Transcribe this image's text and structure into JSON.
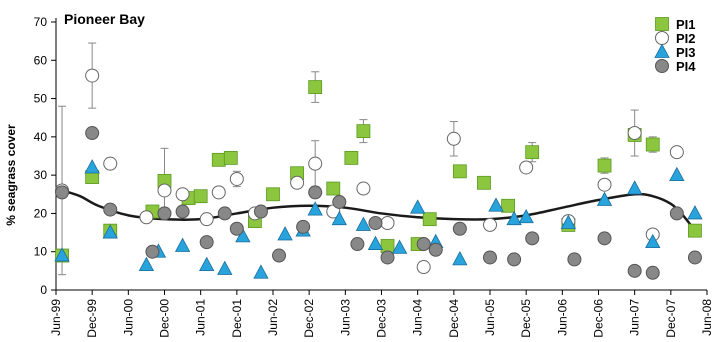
{
  "chart_data": {
    "type": "scatter",
    "title": "Pioneer Bay",
    "ylabel": "% seagrass cover",
    "xlabel": "",
    "ylim": [
      0,
      70
    ],
    "yticks": [
      0,
      10,
      20,
      30,
      40,
      50,
      60,
      70
    ],
    "xlim": [
      "Jun-99",
      "Jun-08"
    ],
    "xticks": [
      "Jun-99",
      "Dec-99",
      "Jun-00",
      "Dec-00",
      "Jun-01",
      "Dec-01",
      "Jun-02",
      "Dec-02",
      "Jun-03",
      "Dec-03",
      "Jun-04",
      "Dec-04",
      "Jun-05",
      "Dec-05",
      "Jun-06",
      "Dec-06",
      "Jun-07",
      "Dec-07",
      "Jun-08"
    ],
    "legend_position": "top-right",
    "grid": false,
    "colors": {
      "PI1_fill": "#8cc63f",
      "PI1_edge": "#5a9a1f",
      "PI2_fill": "#ffffff",
      "PI2_edge": "#666666",
      "PI3_fill": "#29a3dc",
      "PI3_edge": "#1a6e9e",
      "PI4_fill": "#888888",
      "PI4_edge": "#555555",
      "trend": "#1a1a1a",
      "error": "#888888"
    },
    "series": [
      {
        "name": "PI1",
        "marker": "square",
        "points": [
          {
            "x": "1999-07",
            "y": 9,
            "err": 0
          },
          {
            "x": "1999-12",
            "y": 29.5,
            "err": 0
          },
          {
            "x": "2000-03",
            "y": 15.5,
            "err": 0
          },
          {
            "x": "2000-10",
            "y": 20.5,
            "err": 0
          },
          {
            "x": "2000-12",
            "y": 28.5,
            "err": 8.5
          },
          {
            "x": "2001-04",
            "y": 24,
            "err": 0
          },
          {
            "x": "2001-06",
            "y": 24.5,
            "err": 0
          },
          {
            "x": "2001-09",
            "y": 34,
            "err": 0
          },
          {
            "x": "2001-11",
            "y": 34.5,
            "err": 0
          },
          {
            "x": "2002-03",
            "y": 18,
            "err": 0
          },
          {
            "x": "2002-06",
            "y": 25,
            "err": 0
          },
          {
            "x": "2002-10",
            "y": 30.5,
            "err": 0
          },
          {
            "x": "2003-01",
            "y": 53,
            "err": 4
          },
          {
            "x": "2003-04",
            "y": 26.5,
            "err": 0
          },
          {
            "x": "2003-07",
            "y": 34.5,
            "err": 0
          },
          {
            "x": "2003-09",
            "y": 41.5,
            "err": 3
          },
          {
            "x": "2004-01",
            "y": 11.5,
            "err": 0
          },
          {
            "x": "2004-06",
            "y": 12,
            "err": 0
          },
          {
            "x": "2004-08",
            "y": 18.5,
            "err": 0
          },
          {
            "x": "2005-01",
            "y": 31,
            "err": 0
          },
          {
            "x": "2005-05",
            "y": 28,
            "err": 0
          },
          {
            "x": "2005-09",
            "y": 22,
            "err": 0
          },
          {
            "x": "2006-01",
            "y": 36,
            "err": 2.5
          },
          {
            "x": "2006-07",
            "y": 17,
            "err": 0
          },
          {
            "x": "2007-01",
            "y": 32.5,
            "err": 2
          },
          {
            "x": "2007-06",
            "y": 40.5,
            "err": 0
          },
          {
            "x": "2007-09",
            "y": 38,
            "err": 2
          },
          {
            "x": "2008-04",
            "y": 15.5,
            "err": 0
          }
        ]
      },
      {
        "name": "PI2",
        "marker": "circle",
        "points": [
          {
            "x": "1999-07",
            "y": 26,
            "err": 22
          },
          {
            "x": "1999-12",
            "y": 56,
            "err": 8.5
          },
          {
            "x": "2000-03",
            "y": 33,
            "err": 0
          },
          {
            "x": "2000-09",
            "y": 19,
            "err": 0
          },
          {
            "x": "2000-12",
            "y": 26,
            "err": 0
          },
          {
            "x": "2001-03",
            "y": 25,
            "err": 0
          },
          {
            "x": "2001-07",
            "y": 18.5,
            "err": 0
          },
          {
            "x": "2001-09",
            "y": 25.5,
            "err": 0
          },
          {
            "x": "2001-12",
            "y": 29,
            "err": 2
          },
          {
            "x": "2002-03",
            "y": 20,
            "err": 0
          },
          {
            "x": "2002-10",
            "y": 28,
            "err": 0
          },
          {
            "x": "2003-01",
            "y": 33,
            "err": 6
          },
          {
            "x": "2003-04",
            "y": 20.5,
            "err": 0
          },
          {
            "x": "2003-09",
            "y": 26.5,
            "err": 0
          },
          {
            "x": "2004-01",
            "y": 17.5,
            "err": 0
          },
          {
            "x": "2004-07",
            "y": 6,
            "err": 0
          },
          {
            "x": "2004-12",
            "y": 39.5,
            "err": 4.5
          },
          {
            "x": "2005-06",
            "y": 17,
            "err": 0
          },
          {
            "x": "2005-12",
            "y": 32,
            "err": 0
          },
          {
            "x": "2006-07",
            "y": 18,
            "err": 0
          },
          {
            "x": "2007-01",
            "y": 27.5,
            "err": 0
          },
          {
            "x": "2007-06",
            "y": 41,
            "err": 6
          },
          {
            "x": "2007-09",
            "y": 14.5,
            "err": 0
          },
          {
            "x": "2008-01",
            "y": 36,
            "err": 0
          }
        ]
      },
      {
        "name": "PI3",
        "marker": "triangle",
        "points": [
          {
            "x": "1999-07",
            "y": 9,
            "err": 0
          },
          {
            "x": "1999-12",
            "y": 32,
            "err": 0
          },
          {
            "x": "2000-03",
            "y": 15,
            "err": 0
          },
          {
            "x": "2000-09",
            "y": 6.5,
            "err": 0
          },
          {
            "x": "2000-11",
            "y": 10,
            "err": 0
          },
          {
            "x": "2001-03",
            "y": 11.5,
            "err": 0
          },
          {
            "x": "2001-07",
            "y": 6.5,
            "err": 0
          },
          {
            "x": "2001-10",
            "y": 5.5,
            "err": 0
          },
          {
            "x": "2002-01",
            "y": 14,
            "err": 0
          },
          {
            "x": "2002-04",
            "y": 4.5,
            "err": 0
          },
          {
            "x": "2002-08",
            "y": 14.5,
            "err": 0
          },
          {
            "x": "2002-11",
            "y": 15.5,
            "err": 0
          },
          {
            "x": "2003-01",
            "y": 21,
            "err": 0
          },
          {
            "x": "2003-05",
            "y": 18.5,
            "err": 0
          },
          {
            "x": "2003-09",
            "y": 17,
            "err": 0
          },
          {
            "x": "2003-11",
            "y": 12,
            "err": 0
          },
          {
            "x": "2004-03",
            "y": 11,
            "err": 0
          },
          {
            "x": "2004-06",
            "y": 21.5,
            "err": 0
          },
          {
            "x": "2004-09",
            "y": 12.5,
            "err": 0
          },
          {
            "x": "2005-01",
            "y": 8,
            "err": 0
          },
          {
            "x": "2005-07",
            "y": 22,
            "err": 0
          },
          {
            "x": "2005-10",
            "y": 18.5,
            "err": 0
          },
          {
            "x": "2005-12",
            "y": 19,
            "err": 0
          },
          {
            "x": "2006-07",
            "y": 17.5,
            "err": 0
          },
          {
            "x": "2007-01",
            "y": 23.5,
            "err": 0
          },
          {
            "x": "2007-06",
            "y": 26.5,
            "err": 0
          },
          {
            "x": "2007-09",
            "y": 12.5,
            "err": 0
          },
          {
            "x": "2008-01",
            "y": 30,
            "err": 0
          },
          {
            "x": "2008-04",
            "y": 20,
            "err": 0
          }
        ]
      },
      {
        "name": "PI4",
        "marker": "circle",
        "points": [
          {
            "x": "1999-07",
            "y": 25.5,
            "err": 0
          },
          {
            "x": "1999-12",
            "y": 41,
            "err": 0
          },
          {
            "x": "2000-03",
            "y": 21,
            "err": 0
          },
          {
            "x": "2000-10",
            "y": 10,
            "err": 0
          },
          {
            "x": "2000-12",
            "y": 20,
            "err": 0
          },
          {
            "x": "2001-03",
            "y": 20.5,
            "err": 0
          },
          {
            "x": "2001-07",
            "y": 12.5,
            "err": 0
          },
          {
            "x": "2001-10",
            "y": 20,
            "err": 0
          },
          {
            "x": "2001-12",
            "y": 16,
            "err": 0
          },
          {
            "x": "2002-04",
            "y": 20.5,
            "err": 0
          },
          {
            "x": "2002-07",
            "y": 9,
            "err": 0
          },
          {
            "x": "2002-11",
            "y": 16.5,
            "err": 0
          },
          {
            "x": "2003-01",
            "y": 25.5,
            "err": 0
          },
          {
            "x": "2003-05",
            "y": 23,
            "err": 0
          },
          {
            "x": "2003-08",
            "y": 12,
            "err": 0
          },
          {
            "x": "2003-11",
            "y": 17.5,
            "err": 0
          },
          {
            "x": "2004-01",
            "y": 8.5,
            "err": 0
          },
          {
            "x": "2004-07",
            "y": 12,
            "err": 0
          },
          {
            "x": "2004-09",
            "y": 10.5,
            "err": 0
          },
          {
            "x": "2005-01",
            "y": 16,
            "err": 0
          },
          {
            "x": "2005-06",
            "y": 8.5,
            "err": 0
          },
          {
            "x": "2005-10",
            "y": 8,
            "err": 0
          },
          {
            "x": "2006-01",
            "y": 13.5,
            "err": 0
          },
          {
            "x": "2006-08",
            "y": 8,
            "err": 0
          },
          {
            "x": "2007-01",
            "y": 13.5,
            "err": 0
          },
          {
            "x": "2007-06",
            "y": 5,
            "err": 0
          },
          {
            "x": "2007-09",
            "y": 4.5,
            "err": 0
          },
          {
            "x": "2008-01",
            "y": 20,
            "err": 0
          },
          {
            "x": "2008-04",
            "y": 8.5,
            "err": 0
          }
        ]
      }
    ],
    "trend": {
      "name": "",
      "points": [
        {
          "x": "1999-07",
          "y": 26
        },
        {
          "x": "1999-10",
          "y": 24.5
        },
        {
          "x": "2000-01",
          "y": 22
        },
        {
          "x": "2000-06",
          "y": 19.5
        },
        {
          "x": "2000-12",
          "y": 18.5
        },
        {
          "x": "2001-06",
          "y": 18.5
        },
        {
          "x": "2001-12",
          "y": 20
        },
        {
          "x": "2002-06",
          "y": 21.5
        },
        {
          "x": "2002-12",
          "y": 22
        },
        {
          "x": "2003-06",
          "y": 21.5
        },
        {
          "x": "2003-12",
          "y": 20
        },
        {
          "x": "2004-06",
          "y": 19
        },
        {
          "x": "2004-12",
          "y": 18.5
        },
        {
          "x": "2005-06",
          "y": 18.5
        },
        {
          "x": "2005-12",
          "y": 19.5
        },
        {
          "x": "2006-06",
          "y": 21.5
        },
        {
          "x": "2006-12",
          "y": 23.5
        },
        {
          "x": "2007-06",
          "y": 25
        },
        {
          "x": "2007-09",
          "y": 24.5
        },
        {
          "x": "2007-12",
          "y": 22.5
        },
        {
          "x": "2008-02",
          "y": 19.5
        },
        {
          "x": "2008-04",
          "y": 15.5
        }
      ]
    }
  }
}
